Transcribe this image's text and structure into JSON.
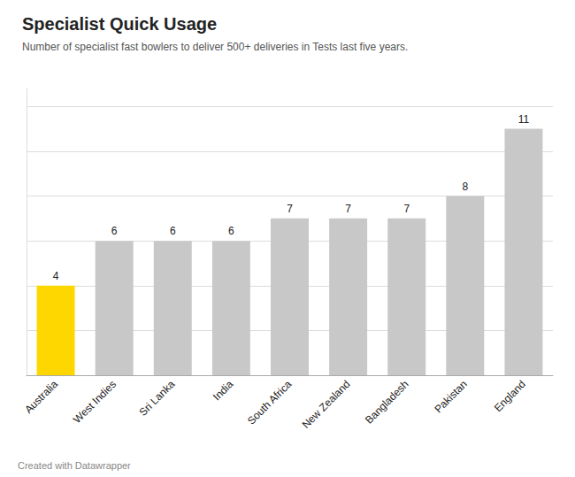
{
  "chart_data": {
    "type": "bar",
    "title": "Specialist Quick Usage",
    "subtitle": "Number of specialist fast bowlers to deliver 500+ deliveries in Tests last five years.",
    "annotations": [
      "Created with Datawrapper"
    ],
    "categories": [
      "Australia",
      "West Indies",
      "Sri Lanka",
      "India",
      "South Africa",
      "New Zealand",
      "Bangladesh",
      "Pakistan",
      "England"
    ],
    "values": [
      4,
      6,
      6,
      6,
      7,
      7,
      7,
      8,
      11
    ],
    "colors": [
      "#FFD700",
      "#C8C8C8",
      "#C8C8C8",
      "#C8C8C8",
      "#C8C8C8",
      "#C8C8C8",
      "#C8C8C8",
      "#C8C8C8",
      "#C8C8C8"
    ],
    "ylim": [
      0,
      12.8
    ],
    "yticks": [
      0,
      2,
      4,
      6,
      8,
      10,
      12
    ],
    "grid": true,
    "data_labels": true,
    "tick_labels": "x"
  }
}
